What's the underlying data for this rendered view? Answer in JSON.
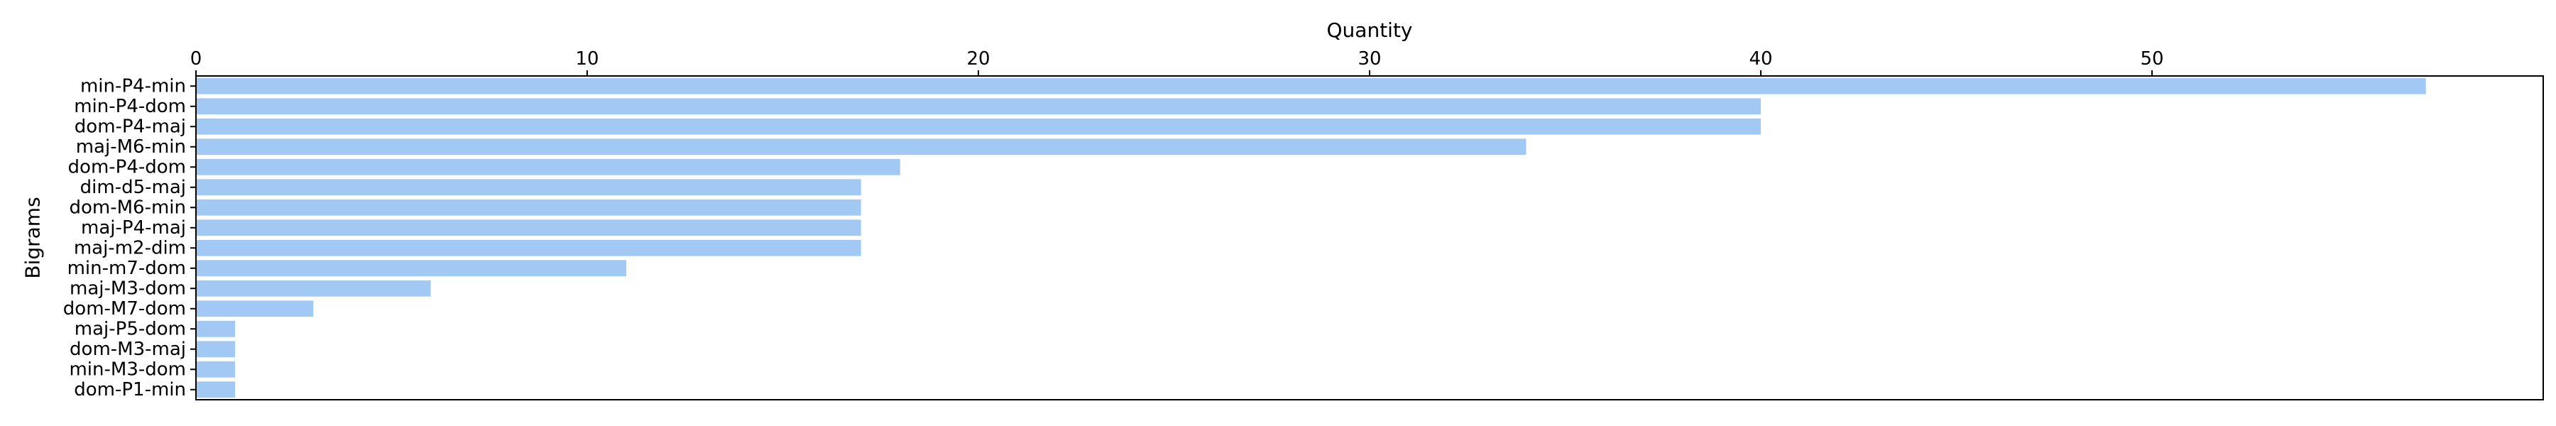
{
  "chart_data": {
    "type": "bar",
    "orientation": "horizontal",
    "xlabel": "Quantity",
    "ylabel": "Bigrams",
    "xaxis_position": "top",
    "xlim": [
      0,
      60
    ],
    "xticks": [
      0,
      10,
      20,
      30,
      40,
      50
    ],
    "xtick_labels": [
      "0",
      "10",
      "20",
      "30",
      "40",
      "50"
    ],
    "grid": false,
    "legend": "none",
    "bar_color": "#a1c9f4",
    "categories": [
      "min-P4-min",
      "min-P4-dom",
      "dom-P4-maj",
      "maj-M6-min",
      "dom-P4-dom",
      "dim-d5-maj",
      "dom-M6-min",
      "maj-P4-maj",
      "maj-m2-dim",
      "min-m7-dom",
      "maj-M3-dom",
      "dom-M7-dom",
      "maj-P5-dom",
      "dom-M3-maj",
      "min-M3-dom",
      "dom-P1-min"
    ],
    "values": [
      57,
      40,
      40,
      34,
      18,
      17,
      17,
      17,
      17,
      11,
      6,
      3,
      1,
      1,
      1,
      1
    ]
  }
}
